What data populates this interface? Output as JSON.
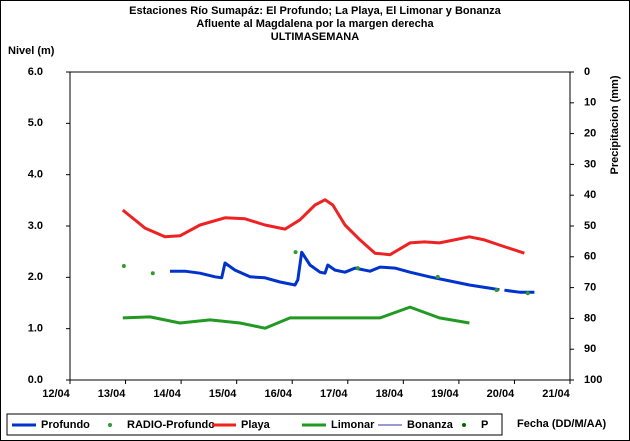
{
  "chart_data": {
    "type": "line",
    "title": "Estaciones Río Sumapáz: El Profundo; La Playa, El Limonar y Bonanza",
    "subtitle": "Afluente al Magdalena por la margen derecha",
    "period": "ULTIMASEMANA",
    "y_label": "Nivel (m)",
    "y2_label": "Precipitacion (mm)",
    "x_label": "Fecha (DD/M/AA)",
    "xlim": [
      12,
      21
    ],
    "xticks": [
      {
        "value": 12,
        "label": "12/04"
      },
      {
        "value": 13,
        "label": "13/04"
      },
      {
        "value": 14,
        "label": "14/04"
      },
      {
        "value": 15,
        "label": "15/04"
      },
      {
        "value": 16,
        "label": "16/04"
      },
      {
        "value": 17,
        "label": "17/04"
      },
      {
        "value": 18,
        "label": "18/04"
      },
      {
        "value": 19,
        "label": "19/04"
      },
      {
        "value": 20,
        "label": "20/04"
      },
      {
        "value": 21,
        "label": "21/04"
      }
    ],
    "ylim": [
      0,
      6
    ],
    "yticks": [
      {
        "value": 0,
        "label": "0.0"
      },
      {
        "value": 1,
        "label": "1.0"
      },
      {
        "value": 2,
        "label": "2.0"
      },
      {
        "value": 3,
        "label": "3.0"
      },
      {
        "value": 4,
        "label": "4.0"
      },
      {
        "value": 5,
        "label": "5.0"
      },
      {
        "value": 6,
        "label": "6.0"
      }
    ],
    "y2lim": [
      100,
      0
    ],
    "y2ticks": [
      0,
      10,
      20,
      30,
      40,
      50,
      60,
      70,
      80,
      90,
      100
    ],
    "grid": false,
    "legend": "bottom",
    "series": [
      {
        "name": "Profundo",
        "color": "#0033cc",
        "style": "line",
        "width": 3,
        "x": [
          13.8,
          14.07,
          14.34,
          14.61,
          14.73,
          14.79,
          14.97,
          15.24,
          15.51,
          15.78,
          16.05,
          16.1,
          16.17,
          16.32,
          16.5,
          16.59,
          16.64,
          16.77,
          16.95,
          17.13,
          17.4,
          17.58,
          17.85,
          18.12,
          18.47,
          18.83,
          19.19,
          19.55,
          19.73,
          19.76,
          19.82,
          20.09,
          20.36
        ],
        "values": [
          2.12,
          2.12,
          2.08,
          2.01,
          1.99,
          2.28,
          2.14,
          2.01,
          1.99,
          1.91,
          1.85,
          1.95,
          2.49,
          2.24,
          2.1,
          2.08,
          2.24,
          2.14,
          2.1,
          2.18,
          2.12,
          2.2,
          2.18,
          2.1,
          2.01,
          1.93,
          1.85,
          1.79,
          1.76,
          null,
          1.75,
          1.71,
          1.71
        ]
      },
      {
        "name": "RADIO-Profundo",
        "color": "#339933",
        "style": "dots",
        "width": 2,
        "x": [
          12.97,
          13.49,
          16.06,
          17.18,
          18.62,
          19.68,
          20.24
        ],
        "values": [
          2.22,
          2.08,
          2.49,
          2.18,
          2.01,
          1.75,
          1.69
        ]
      },
      {
        "name": "Playa",
        "color": "#ee2222",
        "style": "line",
        "width": 3,
        "x": [
          12.95,
          13.35,
          13.71,
          13.98,
          14.34,
          14.79,
          15.15,
          15.51,
          15.87,
          16.14,
          16.41,
          16.59,
          16.73,
          16.95,
          17.22,
          17.49,
          17.76,
          18.12,
          18.38,
          18.65,
          18.92,
          19.19,
          19.46,
          19.73,
          20.18
        ],
        "values": [
          3.31,
          2.96,
          2.79,
          2.81,
          3.02,
          3.16,
          3.14,
          3.02,
          2.94,
          3.12,
          3.41,
          3.51,
          3.41,
          3.02,
          2.73,
          2.47,
          2.44,
          2.67,
          2.69,
          2.67,
          2.73,
          2.79,
          2.73,
          2.63,
          2.47
        ]
      },
      {
        "name": "Limonar",
        "color": "#229922",
        "style": "line",
        "width": 3,
        "x": [
          12.95,
          13.44,
          13.98,
          14.52,
          15.06,
          15.51,
          15.96,
          16.5,
          17.13,
          17.58,
          18.12,
          18.65,
          19.19
        ],
        "values": [
          1.21,
          1.23,
          1.11,
          1.17,
          1.11,
          1.01,
          1.21,
          1.21,
          1.21,
          1.21,
          1.42,
          1.21,
          1.11
        ]
      },
      {
        "name": "Bonanza",
        "color": "#3333aa",
        "style": "line",
        "width": 1,
        "x": [],
        "values": []
      },
      {
        "name": "P",
        "color": "#006600",
        "style": "dots",
        "width": 2,
        "axis": "y2",
        "x": [],
        "values": []
      }
    ]
  }
}
